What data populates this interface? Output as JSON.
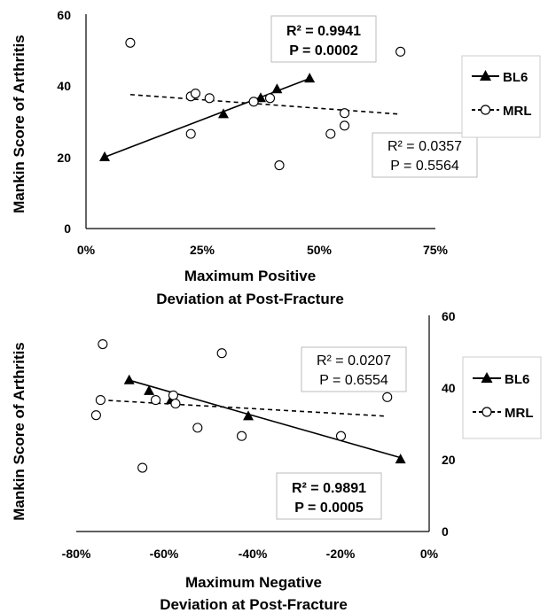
{
  "chart_data": [
    {
      "type": "scatter",
      "ylabel": "Mankin Score of Arthritis",
      "xlabel_lines": [
        "Maximum Positive",
        "Deviation at Post-Fracture"
      ],
      "xlim": [
        0,
        0.75
      ],
      "ylim": [
        0,
        60
      ],
      "x_ticks": [
        {
          "value": 0,
          "label": "0%"
        },
        {
          "value": 0.25,
          "label": "25%"
        },
        {
          "value": 0.5,
          "label": "50%"
        },
        {
          "value": 0.75,
          "label": "75%"
        }
      ],
      "y_ticks": [
        {
          "value": 0,
          "label": "0"
        },
        {
          "value": 20,
          "label": "20"
        },
        {
          "value": 40,
          "label": "40"
        },
        {
          "value": 60,
          "label": "60"
        }
      ],
      "grid": false,
      "legend_position": "right",
      "series": [
        {
          "name": "BL6",
          "marker": "filled-triangle",
          "trendline": "solid",
          "points": [
            {
              "x": 0.04,
              "y": 20
            },
            {
              "x": 0.295,
              "y": 32
            },
            {
              "x": 0.375,
              "y": 36.5
            },
            {
              "x": 0.41,
              "y": 39
            },
            {
              "x": 0.48,
              "y": 42
            }
          ],
          "trend": [
            [
              0.04,
              20
            ],
            [
              0.48,
              42
            ]
          ],
          "stats": {
            "r2": "R² = 0.9941",
            "p": "P = 0.0002",
            "bold": true
          }
        },
        {
          "name": "MRL",
          "marker": "open-circle",
          "trendline": "dashed",
          "points": [
            {
              "x": 0.095,
              "y": 52
            },
            {
              "x": 0.225,
              "y": 37
            },
            {
              "x": 0.235,
              "y": 37.8
            },
            {
              "x": 0.265,
              "y": 36.5
            },
            {
              "x": 0.225,
              "y": 26.5
            },
            {
              "x": 0.36,
              "y": 35.5
            },
            {
              "x": 0.395,
              "y": 36.5
            },
            {
              "x": 0.415,
              "y": 17.7
            },
            {
              "x": 0.525,
              "y": 26.5
            },
            {
              "x": 0.555,
              "y": 32.3
            },
            {
              "x": 0.555,
              "y": 28.8
            },
            {
              "x": 0.675,
              "y": 49.5
            }
          ],
          "trend": [
            [
              0.095,
              37.5
            ],
            [
              0.675,
              32
            ]
          ],
          "stats": {
            "r2": "R² = 0.0357",
            "p": "P = 0.5564",
            "bold": false
          }
        }
      ]
    },
    {
      "type": "scatter",
      "ylabel": "Mankin Score of Arthritis",
      "xlabel_lines": [
        "Maximum Negative",
        "Deviation at Post-Fracture"
      ],
      "xlim": [
        -0.8,
        0
      ],
      "ylim": [
        0,
        60
      ],
      "y_axis_side": "right",
      "x_ticks": [
        {
          "value": -0.8,
          "label": "-80%"
        },
        {
          "value": -0.6,
          "label": "-60%"
        },
        {
          "value": -0.4,
          "label": "-40%"
        },
        {
          "value": -0.2,
          "label": "-20%"
        },
        {
          "value": 0,
          "label": "0%"
        }
      ],
      "y_ticks": [
        {
          "value": 0,
          "label": "0"
        },
        {
          "value": 20,
          "label": "20"
        },
        {
          "value": 40,
          "label": "40"
        },
        {
          "value": 60,
          "label": "60"
        }
      ],
      "grid": false,
      "legend_position": "right",
      "series": [
        {
          "name": "BL6",
          "marker": "filled-triangle",
          "trendline": "solid",
          "points": [
            {
              "x": -0.68,
              "y": 42
            },
            {
              "x": -0.635,
              "y": 39
            },
            {
              "x": -0.585,
              "y": 36.5
            },
            {
              "x": -0.41,
              "y": 32
            },
            {
              "x": -0.065,
              "y": 20
            }
          ],
          "trend": [
            [
              -0.68,
              42
            ],
            [
              -0.065,
              20.5
            ]
          ],
          "stats": {
            "r2": "R² = 0.9891",
            "p": "P = 0.0005",
            "bold": true
          }
        },
        {
          "name": "MRL",
          "marker": "open-circle",
          "trendline": "dashed",
          "points": [
            {
              "x": -0.74,
              "y": 52
            },
            {
              "x": -0.745,
              "y": 36.5
            },
            {
              "x": -0.755,
              "y": 32.3
            },
            {
              "x": -0.62,
              "y": 36.5
            },
            {
              "x": -0.58,
              "y": 37.8
            },
            {
              "x": -0.575,
              "y": 35.5
            },
            {
              "x": -0.525,
              "y": 28.8
            },
            {
              "x": -0.47,
              "y": 49.5
            },
            {
              "x": -0.425,
              "y": 26.5
            },
            {
              "x": -0.65,
              "y": 17.7
            },
            {
              "x": -0.2,
              "y": 26.5
            },
            {
              "x": -0.095,
              "y": 37.3
            }
          ],
          "trend": [
            [
              -0.745,
              36.5
            ],
            [
              -0.095,
              32
            ]
          ],
          "stats": {
            "r2": "R² = 0.0207",
            "p": "P = 0.6554",
            "bold": false
          }
        }
      ]
    }
  ]
}
